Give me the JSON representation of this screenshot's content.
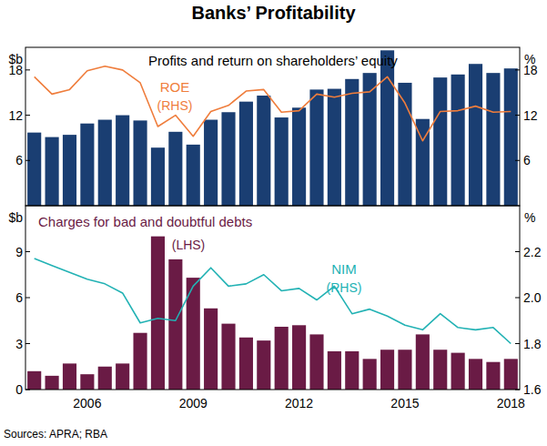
{
  "title": "Banks’ Profitability",
  "source": "Sources: APRA; RBA",
  "chart_data": [
    {
      "type": "bar",
      "title": "Profits and return on shareholders’ equity",
      "ylabel": "$b",
      "y2label": "%",
      "categories": [
        null,
        null,
        null,
        null,
        null,
        null,
        null,
        null,
        null,
        null,
        null,
        null,
        null,
        null,
        null,
        null,
        null,
        null,
        null,
        null,
        null,
        null,
        null,
        null,
        null,
        null,
        null,
        null
      ],
      "series": [
        {
          "type": "bar",
          "color": "#1a3e72",
          "values": [
            9.7,
            9.1,
            9.4,
            10.9,
            11.4,
            12.0,
            11.3,
            7.7,
            9.8,
            8.1,
            11.4,
            12.4,
            13.8,
            14.6,
            11.7,
            13.0,
            15.4,
            15.5,
            16.8,
            17.6,
            20.6,
            16.3,
            11.5,
            17.0,
            17.4,
            18.8,
            17.6,
            18.2
          ]
        },
        {
          "type": "line",
          "name": "ROE",
          "axis_note": "(RHS)",
          "axis": "y2",
          "color": "#ef7d3c",
          "values": [
            17.1,
            14.8,
            15.4,
            17.9,
            18.5,
            18.0,
            16.3,
            10.5,
            12.0,
            9.2,
            12.5,
            13.3,
            15.2,
            15.4,
            12.4,
            12.6,
            14.8,
            14.4,
            14.9,
            15.1,
            17.1,
            13.6,
            8.6,
            12.5,
            12.6,
            13.2,
            12.4,
            12.5
          ]
        }
      ],
      "ylim": [
        0,
        21
      ],
      "yticks": [
        6,
        12,
        18
      ],
      "y2lim": [
        0,
        21
      ],
      "y2ticks": [
        6,
        12,
        18
      ],
      "grid": false,
      "tick_labels": "y"
    },
    {
      "type": "bar",
      "title": "Charges for bad and doubtful debts",
      "ylabel": "$b",
      "y2label": "%",
      "categories": [
        null,
        null,
        null,
        "2006",
        null,
        null,
        null,
        null,
        null,
        "2009",
        null,
        null,
        null,
        null,
        null,
        "2012",
        null,
        null,
        null,
        null,
        null,
        "2015",
        null,
        null,
        null,
        null,
        null,
        "2018"
      ],
      "series": [
        {
          "type": "bar",
          "axis_note": "(LHS)",
          "color": "#6a1b45",
          "values": [
            1.2,
            0.9,
            1.7,
            1.0,
            1.5,
            1.7,
            3.7,
            10.0,
            8.5,
            7.3,
            5.3,
            4.3,
            3.4,
            3.2,
            4.1,
            4.2,
            3.6,
            2.5,
            2.5,
            2.0,
            2.6,
            2.6,
            3.6,
            2.6,
            2.4,
            2.0,
            1.8,
            2.0
          ]
        },
        {
          "type": "line",
          "name": "NIM",
          "axis_note": "(RHS)",
          "axis": "y2",
          "color": "#22b2b4",
          "values": [
            2.17,
            2.14,
            2.11,
            2.08,
            2.06,
            2.02,
            1.89,
            1.91,
            1.9,
            2.05,
            2.13,
            2.05,
            2.06,
            2.1,
            2.03,
            2.04,
            1.99,
            2.05,
            1.93,
            1.95,
            1.92,
            1.88,
            1.86,
            1.93,
            1.87,
            1.86,
            1.87,
            1.8
          ]
        }
      ],
      "ylim": [
        0,
        12
      ],
      "yticks": [
        0,
        3,
        6,
        9
      ],
      "y2lim": [
        1.6,
        2.4
      ],
      "y2ticks": [
        1.6,
        1.8,
        {
          "value": 2,
          "label": "2.0"
        },
        2.2
      ],
      "grid": false
    }
  ]
}
